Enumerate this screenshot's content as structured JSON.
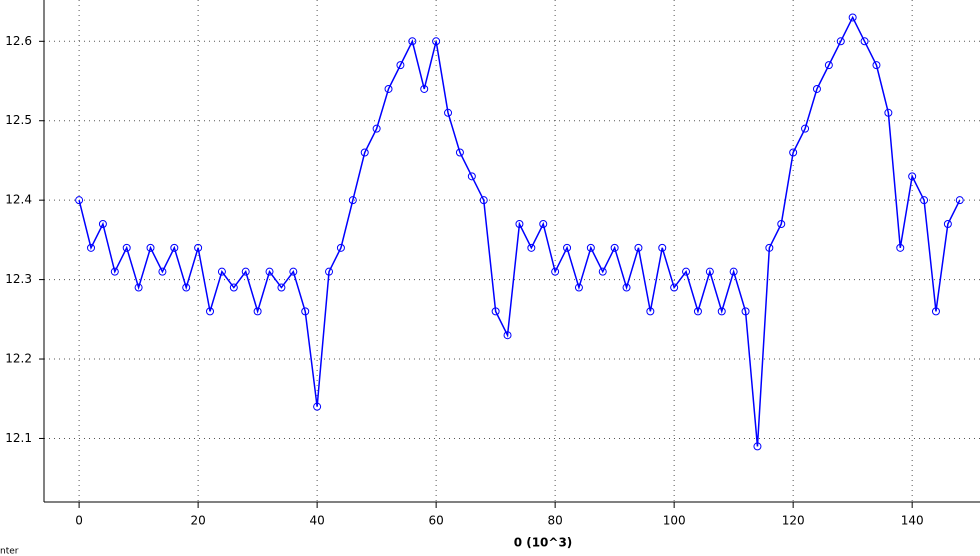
{
  "chart_data": {
    "type": "line",
    "x_label": "0 (10^3)",
    "corner_text": "nter",
    "x": [
      0,
      2,
      4,
      6,
      8,
      10,
      12,
      14,
      16,
      18,
      20,
      22,
      24,
      26,
      28,
      30,
      32,
      34,
      36,
      38,
      40,
      42,
      44,
      46,
      48,
      50,
      52,
      54,
      56,
      58,
      60,
      62,
      64,
      66,
      68,
      70,
      72,
      74,
      76,
      78,
      80,
      82,
      84,
      86,
      88,
      90,
      92,
      94,
      96,
      98,
      100,
      102,
      104,
      106,
      108,
      110,
      112,
      114,
      116,
      118,
      120,
      122,
      124,
      126,
      128,
      130,
      132,
      134,
      136,
      138,
      140,
      142,
      144,
      146,
      148
    ],
    "series": [
      {
        "color": "#0000ff",
        "values": [
          12.4,
          12.34,
          12.37,
          12.31,
          12.34,
          12.29,
          12.34,
          12.31,
          12.34,
          12.29,
          12.34,
          12.26,
          12.31,
          12.29,
          12.31,
          12.26,
          12.31,
          12.29,
          12.31,
          12.26,
          12.14,
          12.31,
          12.34,
          12.4,
          12.46,
          12.49,
          12.54,
          12.57,
          12.6,
          12.54,
          12.6,
          12.51,
          12.46,
          12.43,
          12.4,
          12.26,
          12.23,
          12.37,
          12.34,
          12.37,
          12.31,
          12.34,
          12.29,
          12.34,
          12.31,
          12.34,
          12.29,
          12.34,
          12.26,
          12.34,
          12.29,
          12.31,
          12.26,
          12.31,
          12.26,
          12.31,
          12.26,
          12.09,
          12.34,
          12.37,
          12.46,
          12.49,
          12.54,
          12.57,
          12.6,
          12.63,
          12.6,
          12.57,
          12.51,
          12.34,
          12.43,
          12.4,
          12.26,
          12.37,
          12.4
        ]
      }
    ],
    "xlim": [
      -5.9,
      151.4
    ],
    "ylim": [
      12.02,
      12.652
    ],
    "xticks": [
      0,
      20,
      40,
      60,
      80,
      100,
      120,
      140
    ],
    "yticks": [
      12.1,
      12.2,
      12.3,
      12.4,
      12.5,
      12.6
    ],
    "grid": true
  }
}
